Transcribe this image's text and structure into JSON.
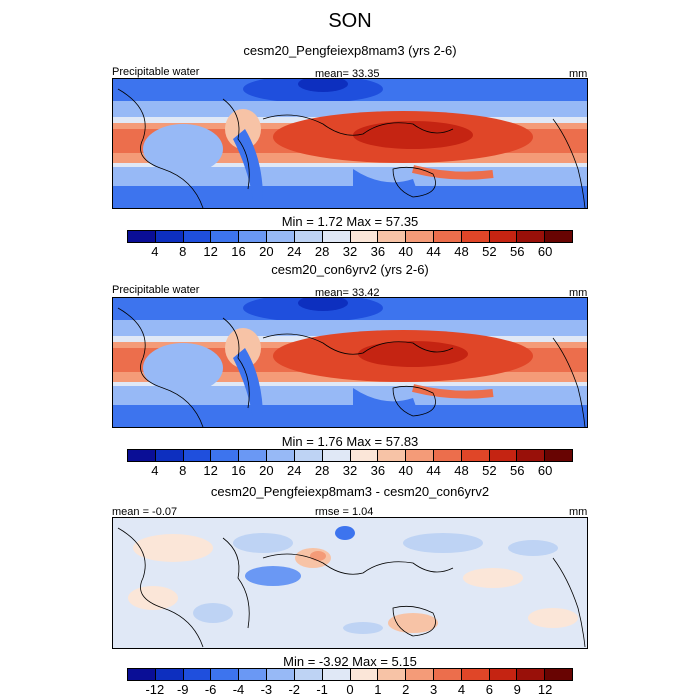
{
  "figure": {
    "title": "SON"
  },
  "panels": [
    {
      "subtitle": "cesm20_Pengfeiexp8mam3 (yrs 2-6)",
      "left_label": "Precipitable water",
      "center_label": "mean=  33.35",
      "right_label": "mm",
      "minmax": "Min =   1.72 Max =  57.35",
      "colorbar_ticks": [
        "4",
        "8",
        "12",
        "16",
        "20",
        "24",
        "28",
        "32",
        "36",
        "40",
        "44",
        "48",
        "52",
        "56",
        "60"
      ],
      "colorbar_colors": [
        "#0a0e96",
        "#0d2fbf",
        "#1f4fdd",
        "#3d74ee",
        "#6a98f4",
        "#97b9f6",
        "#bed3f4",
        "#e0e8f6",
        "#fbe6d8",
        "#f7c3a6",
        "#f49b78",
        "#ec6e4c",
        "#e04628",
        "#c52412",
        "#991009",
        "#680402"
      ],
      "values_range": {
        "min": 1.72,
        "max": 57.35
      }
    },
    {
      "subtitle": "cesm20_con6yrv2 (yrs 2-6)",
      "left_label": "Precipitable water",
      "center_label": "mean=  33.42",
      "right_label": "mm",
      "minmax": "Min =   1.76 Max =  57.83",
      "colorbar_ticks": [
        "4",
        "8",
        "12",
        "16",
        "20",
        "24",
        "28",
        "32",
        "36",
        "40",
        "44",
        "48",
        "52",
        "56",
        "60"
      ],
      "colorbar_colors": [
        "#0a0e96",
        "#0d2fbf",
        "#1f4fdd",
        "#3d74ee",
        "#6a98f4",
        "#97b9f6",
        "#bed3f4",
        "#e0e8f6",
        "#fbe6d8",
        "#f7c3a6",
        "#f49b78",
        "#ec6e4c",
        "#e04628",
        "#c52412",
        "#991009",
        "#680402"
      ],
      "values_range": {
        "min": 1.76,
        "max": 57.83
      }
    },
    {
      "subtitle": "cesm20_Pengfeiexp8mam3 - cesm20_con6yrv2",
      "left_label": "mean = -0.07",
      "center_label": "rmse =  1.04",
      "right_label": "mm",
      "minmax": "Min =  -3.92 Max =   5.15",
      "colorbar_ticks": [
        "-12",
        "-9",
        "-6",
        "-4",
        "-3",
        "-2",
        "-1",
        "0",
        "1",
        "2",
        "3",
        "4",
        "6",
        "9",
        "12"
      ],
      "colorbar_colors": [
        "#0a0e96",
        "#0d2fbf",
        "#1f4fdd",
        "#3d74ee",
        "#6a98f4",
        "#97b9f6",
        "#bed3f4",
        "#e0e8f6",
        "#fbe6d8",
        "#f7c3a6",
        "#f49b78",
        "#ec6e4c",
        "#e04628",
        "#c52412",
        "#991009",
        "#680402"
      ],
      "values_range": {
        "min": -3.92,
        "max": 5.15
      }
    }
  ]
}
